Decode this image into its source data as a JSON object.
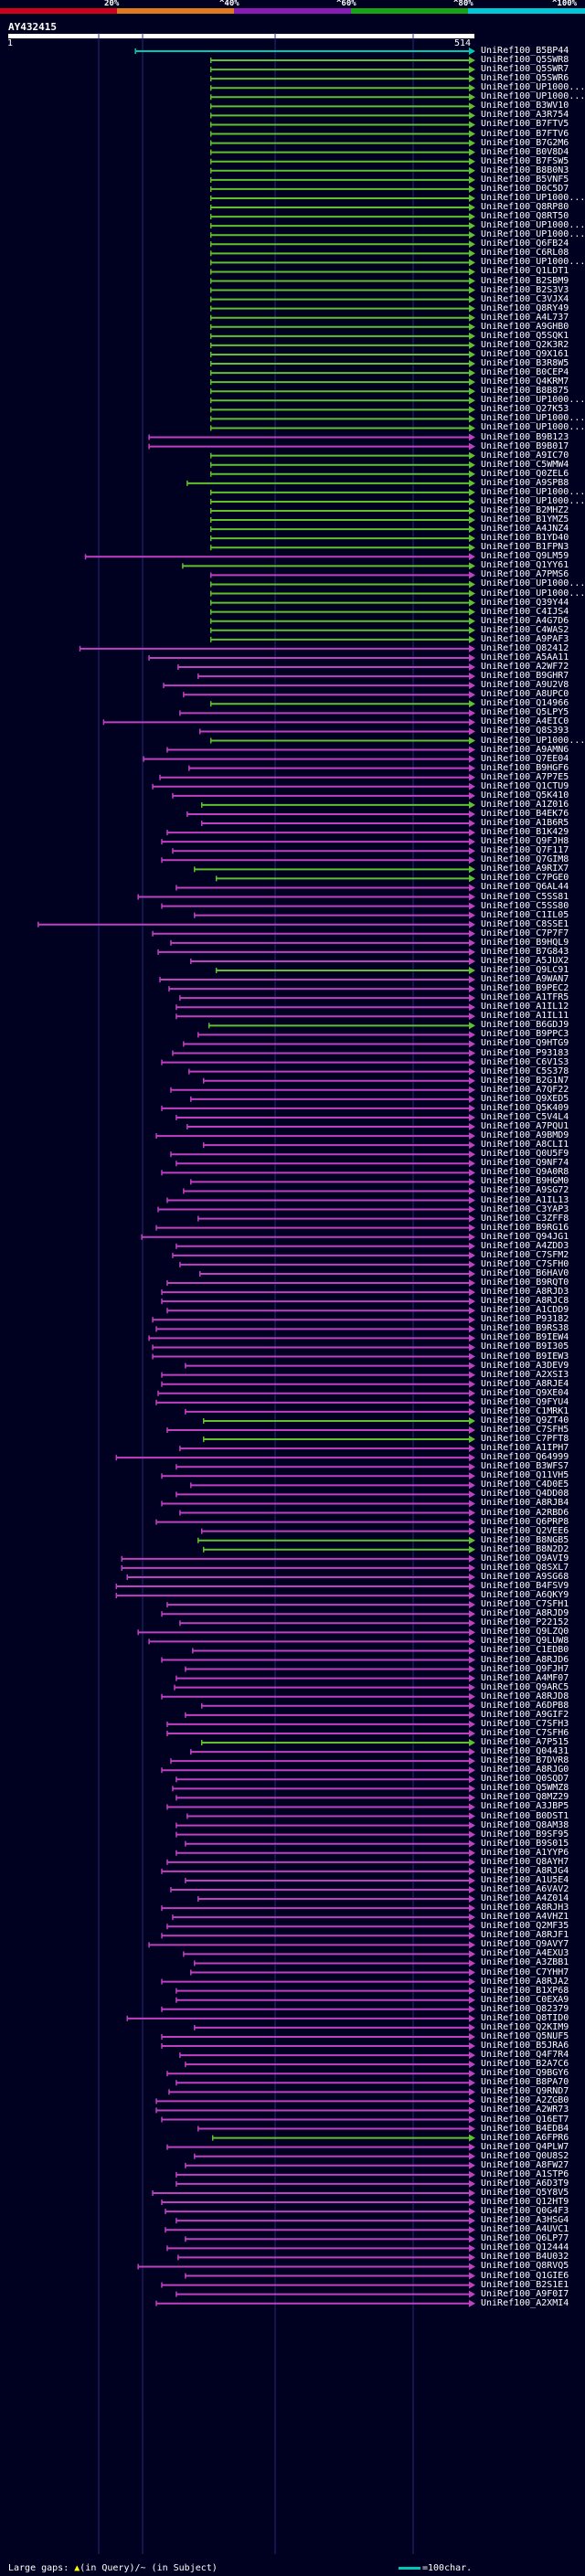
{
  "scale_bar": {
    "ticks": [
      "20%",
      "^40%",
      "^60%",
      "^80%",
      "^100%"
    ],
    "colors": [
      "#d0021b",
      "#e07a1a",
      "#8c1ab8",
      "#18a418",
      "#00c8d8"
    ]
  },
  "query": {
    "title": "AY432415",
    "length": 514,
    "start_label": "1",
    "end_label": "514"
  },
  "grid_positions": [
    108,
    156,
    301,
    452
  ],
  "hits": [
    [
      "UniRef100_B5BP44",
      141,
      514,
      "#00c8b4"
    ],
    [
      "UniRef100_Q5SWR8",
      224,
      514,
      "#60c030"
    ],
    [
      "UniRef100_Q5SWR7",
      224,
      514,
      "#60c030"
    ],
    [
      "UniRef100_Q5SWR6",
      224,
      514,
      "#60c030"
    ],
    [
      "UniRef100_UP1000...",
      224,
      514,
      "#60c030"
    ],
    [
      "UniRef100_UP1000...",
      224,
      514,
      "#60c030"
    ],
    [
      "UniRef100_B3WV10",
      224,
      514,
      "#60c030"
    ],
    [
      "UniRef100_A3R754",
      224,
      514,
      "#60c030"
    ],
    [
      "UniRef100_B7FTV5",
      224,
      514,
      "#60c030"
    ],
    [
      "UniRef100_B7FTV6",
      224,
      514,
      "#60c030"
    ],
    [
      "UniRef100_B7G2M6",
      224,
      514,
      "#60c030"
    ],
    [
      "UniRef100_B0V8D4",
      224,
      514,
      "#60c030"
    ],
    [
      "UniRef100_B7FSW5",
      224,
      514,
      "#60c030"
    ],
    [
      "UniRef100_B8B0N3",
      224,
      514,
      "#60c030"
    ],
    [
      "UniRef100_B5VNF5",
      224,
      514,
      "#60c030"
    ],
    [
      "UniRef100_D0C5D7",
      224,
      514,
      "#60c030"
    ],
    [
      "UniRef100_UP1000...",
      224,
      514,
      "#60c030"
    ],
    [
      "UniRef100_Q8RP80",
      224,
      514,
      "#60c030"
    ],
    [
      "UniRef100_Q8RT50",
      224,
      514,
      "#60c030"
    ],
    [
      "UniRef100_UP1000...",
      224,
      514,
      "#60c030"
    ],
    [
      "UniRef100_UP1000...",
      224,
      514,
      "#60c030"
    ],
    [
      "UniRef100_Q6FB24",
      224,
      514,
      "#60c030"
    ],
    [
      "UniRef100_C6RL08",
      224,
      514,
      "#60c030"
    ],
    [
      "UniRef100_UP1000...",
      224,
      514,
      "#60c030"
    ],
    [
      "UniRef100_Q1LDT1",
      224,
      514,
      "#60c030"
    ],
    [
      "UniRef100_B2SBM9",
      224,
      514,
      "#60c030"
    ],
    [
      "UniRef100_B2S3V3",
      224,
      514,
      "#60c030"
    ],
    [
      "UniRef100_C3VJX4",
      224,
      514,
      "#60c030"
    ],
    [
      "UniRef100_Q8RY49",
      224,
      514,
      "#60c030"
    ],
    [
      "UniRef100_A4L737",
      224,
      514,
      "#60c030"
    ],
    [
      "UniRef100_A9GHB0",
      224,
      514,
      "#60c030"
    ],
    [
      "UniRef100_Q5SQK1",
      224,
      514,
      "#60c030"
    ],
    [
      "UniRef100_Q2K3R2",
      224,
      514,
      "#60c030"
    ],
    [
      "UniRef100_Q9X161",
      224,
      514,
      "#60c030"
    ],
    [
      "UniRef100_B3R8W5",
      224,
      514,
      "#60c030"
    ],
    [
      "UniRef100_B0CEP4",
      224,
      514,
      "#60c030"
    ],
    [
      "UniRef100_Q4KRM7",
      224,
      514,
      "#60c030"
    ],
    [
      "UniRef100_B8B875",
      224,
      514,
      "#60c030"
    ],
    [
      "UniRef100_UP1000...",
      224,
      514,
      "#60c030"
    ],
    [
      "UniRef100_Q27K53",
      224,
      514,
      "#60c030"
    ],
    [
      "UniRef100_UP1000...",
      224,
      514,
      "#60c030"
    ],
    [
      "UniRef100_UP1000...",
      224,
      514,
      "#60c030"
    ],
    [
      "UniRef100_B9B123",
      156,
      514,
      "#c040c0"
    ],
    [
      "UniRef100_B9B017",
      156,
      514,
      "#c040c0"
    ],
    [
      "UniRef100_A9IC70",
      224,
      514,
      "#60c030"
    ],
    [
      "UniRef100_C5WMW4",
      224,
      514,
      "#60c030"
    ],
    [
      "UniRef100_Q0ZEL6",
      224,
      514,
      "#60c030"
    ],
    [
      "UniRef100_A9SPB8",
      198,
      514,
      "#60c030"
    ],
    [
      "UniRef100_UP1000...",
      224,
      514,
      "#60c030"
    ],
    [
      "UniRef100_UP1000...",
      224,
      514,
      "#60c030"
    ],
    [
      "UniRef100_B2MHZ2",
      224,
      514,
      "#60c030"
    ],
    [
      "UniRef100_B1YMZ5",
      224,
      514,
      "#60c030"
    ],
    [
      "UniRef100_A4JNZ4",
      224,
      514,
      "#60c030"
    ],
    [
      "UniRef100_B1YD40",
      224,
      514,
      "#60c030"
    ],
    [
      "UniRef100_B1FPN3",
      224,
      514,
      "#60c030"
    ],
    [
      "UniRef100_Q9LM59",
      86,
      514,
      "#c040c0"
    ],
    [
      "UniRef100_Q1YY61",
      193,
      514,
      "#60c030"
    ],
    [
      "UniRef100_A7PMS6",
      224,
      514,
      "#c040c0"
    ],
    [
      "UniRef100_UP1000...",
      224,
      514,
      "#60c030"
    ],
    [
      "UniRef100_UP1000...",
      224,
      514,
      "#60c030"
    ],
    [
      "UniRef100_Q39Y44",
      224,
      514,
      "#60c030"
    ],
    [
      "UniRef100_C4IJS4",
      224,
      514,
      "#60c030"
    ],
    [
      "UniRef100_A4G7D6",
      224,
      514,
      "#60c030"
    ],
    [
      "UniRef100_C4WAS2",
      224,
      514,
      "#60c030"
    ],
    [
      "UniRef100_A9PAF3",
      224,
      514,
      "#60c030"
    ],
    [
      "UniRef100_Q82412",
      80,
      514,
      "#c040c0"
    ],
    [
      "UniRef100_A5AA11",
      156,
      514,
      "#c040c0"
    ],
    [
      "UniRef100_A2WF72",
      188,
      514,
      "#c040c0"
    ],
    [
      "UniRef100_B9GHR7",
      210,
      514,
      "#c040c0"
    ],
    [
      "UniRef100_A9U2V8",
      172,
      514,
      "#c040c0"
    ],
    [
      "UniRef100_A8UPC0",
      194,
      514,
      "#c040c0"
    ],
    [
      "UniRef100_Q14966",
      224,
      514,
      "#60c030"
    ],
    [
      "UniRef100_Q5LPY5",
      190,
      514,
      "#c040c0"
    ],
    [
      "UniRef100_A4EIC0",
      106,
      514,
      "#c040c0"
    ],
    [
      "UniRef100_Q8S393",
      212,
      514,
      "#c040c0"
    ],
    [
      "UniRef100_UP1000...",
      224,
      514,
      "#60c030"
    ],
    [
      "UniRef100_A9AMN6",
      176,
      514,
      "#c040c0"
    ],
    [
      "UniRef100_Q7EE04",
      150,
      514,
      "#c040c0"
    ],
    [
      "UniRef100_B9HGF6",
      200,
      514,
      "#c040c0"
    ],
    [
      "UniRef100_A7P7E5",
      168,
      514,
      "#c040c0"
    ],
    [
      "UniRef100_Q1CTU9",
      160,
      514,
      "#c040c0"
    ],
    [
      "UniRef100_Q5K410",
      182,
      514,
      "#c040c0"
    ],
    [
      "UniRef100_A1Z016",
      214,
      514,
      "#60c030"
    ],
    [
      "UniRef100_B4EK76",
      198,
      514,
      "#c040c0"
    ],
    [
      "UniRef100_A1B6R5",
      214,
      514,
      "#c040c0"
    ],
    [
      "UniRef100_B1K429",
      176,
      514,
      "#c040c0"
    ],
    [
      "UniRef100_Q9FJH8",
      170,
      514,
      "#c040c0"
    ],
    [
      "UniRef100_Q7F117",
      182,
      514,
      "#c040c0"
    ],
    [
      "UniRef100_Q7GIM8",
      170,
      514,
      "#c040c0"
    ],
    [
      "UniRef100_A9RIX7",
      206,
      514,
      "#60c030"
    ],
    [
      "UniRef100_C7PGE0",
      230,
      514,
      "#60c030"
    ],
    [
      "UniRef100_Q6AL44",
      186,
      514,
      "#c040c0"
    ],
    [
      "UniRef100_C5SS81",
      144,
      514,
      "#c040c0"
    ],
    [
      "UniRef100_C5SS80",
      170,
      514,
      "#c040c0"
    ],
    [
      "UniRef100_C1IL05",
      206,
      514,
      "#c040c0"
    ],
    [
      "UniRef100_C8SSE1",
      34,
      514,
      "#c040c0"
    ],
    [
      "UniRef100_C7P7F7",
      160,
      514,
      "#c040c0"
    ],
    [
      "UniRef100_B9HQL9",
      180,
      514,
      "#c040c0"
    ],
    [
      "UniRef100_B7G843",
      166,
      514,
      "#c040c0"
    ],
    [
      "UniRef100_A5JUX2",
      202,
      514,
      "#c040c0"
    ],
    [
      "UniRef100_Q9LC91",
      230,
      514,
      "#60c030"
    ],
    [
      "UniRef100_A9WAN7",
      168,
      514,
      "#c040c0"
    ],
    [
      "UniRef100_B9PEC2",
      178,
      514,
      "#c040c0"
    ],
    [
      "UniRef100_A1TFR5",
      190,
      514,
      "#c040c0"
    ],
    [
      "UniRef100_A1IL12",
      186,
      514,
      "#c040c0"
    ],
    [
      "UniRef100_A1IL11",
      186,
      514,
      "#c040c0"
    ],
    [
      "UniRef100_B6GDJ9",
      222,
      514,
      "#60c030"
    ],
    [
      "UniRef100_B9PPC3",
      210,
      514,
      "#c040c0"
    ],
    [
      "UniRef100_Q9HTG9",
      194,
      514,
      "#c040c0"
    ],
    [
      "UniRef100_P93183",
      182,
      514,
      "#c040c0"
    ],
    [
      "UniRef100_C6V1S3",
      170,
      514,
      "#c040c0"
    ],
    [
      "UniRef100_C5S378",
      200,
      514,
      "#c040c0"
    ],
    [
      "UniRef100_B2G1N7",
      216,
      514,
      "#c040c0"
    ],
    [
      "UniRef100_A7QF22",
      180,
      514,
      "#c040c0"
    ],
    [
      "UniRef100_Q9XED5",
      202,
      514,
      "#c040c0"
    ],
    [
      "UniRef100_Q5K409",
      170,
      514,
      "#c040c0"
    ],
    [
      "UniRef100_C5V4L4",
      186,
      514,
      "#c040c0"
    ],
    [
      "UniRef100_A7PQU1",
      198,
      514,
      "#c040c0"
    ],
    [
      "UniRef100_A9BMD9",
      164,
      514,
      "#c040c0"
    ],
    [
      "UniRef100_A8CLI1",
      216,
      514,
      "#c040c0"
    ],
    [
      "UniRef100_Q0U5F9",
      180,
      514,
      "#c040c0"
    ],
    [
      "UniRef100_Q9NF74",
      186,
      514,
      "#c040c0"
    ],
    [
      "UniRef100_Q9A0R8",
      170,
      514,
      "#c040c0"
    ],
    [
      "UniRef100_B9HGM0",
      202,
      514,
      "#c040c0"
    ],
    [
      "UniRef100_A9SG72",
      194,
      514,
      "#c040c0"
    ],
    [
      "UniRef100_A1IL13",
      176,
      514,
      "#c040c0"
    ],
    [
      "UniRef100_C3YAP3",
      166,
      514,
      "#c040c0"
    ],
    [
      "UniRef100_C3ZFF8",
      210,
      514,
      "#c040c0"
    ],
    [
      "UniRef100_B9RG16",
      164,
      514,
      "#c040c0"
    ],
    [
      "UniRef100_Q94JG1",
      148,
      514,
      "#c040c0"
    ],
    [
      "UniRef100_A4ZDD3",
      186,
      514,
      "#c040c0"
    ],
    [
      "UniRef100_C7SFM2",
      182,
      514,
      "#c040c0"
    ],
    [
      "UniRef100_C7SFH0",
      190,
      514,
      "#c040c0"
    ],
    [
      "UniRef100_B6HAV0",
      212,
      514,
      "#c040c0"
    ],
    [
      "UniRef100_B9RQT0",
      176,
      514,
      "#c040c0"
    ],
    [
      "UniRef100_A8RJD3",
      170,
      514,
      "#c040c0"
    ],
    [
      "UniRef100_A8RJC8",
      170,
      514,
      "#c040c0"
    ],
    [
      "UniRef100_A1CDD9",
      176,
      514,
      "#c040c0"
    ],
    [
      "UniRef100_P93182",
      160,
      514,
      "#c040c0"
    ],
    [
      "UniRef100_B9RS38",
      164,
      514,
      "#c040c0"
    ],
    [
      "UniRef100_B9IEW4",
      156,
      514,
      "#c040c0"
    ],
    [
      "UniRef100_B9I305",
      160,
      514,
      "#c040c0"
    ],
    [
      "UniRef100_B9IEW3",
      160,
      514,
      "#c040c0"
    ],
    [
      "UniRef100_A3DEV9",
      196,
      514,
      "#c040c0"
    ],
    [
      "UniRef100_A2XSI3",
      170,
      514,
      "#c040c0"
    ],
    [
      "UniRef100_A8RJE4",
      170,
      514,
      "#c040c0"
    ],
    [
      "UniRef100_Q9XE04",
      166,
      514,
      "#c040c0"
    ],
    [
      "UniRef100_Q9FYU4",
      164,
      514,
      "#c040c0"
    ],
    [
      "UniRef100_C1MRK1",
      196,
      514,
      "#c040c0"
    ],
    [
      "UniRef100_Q9ZT40",
      216,
      514,
      "#60c030"
    ],
    [
      "UniRef100_C7SFH5",
      176,
      514,
      "#c040c0"
    ],
    [
      "UniRef100_C7PFT8",
      216,
      514,
      "#60c030"
    ],
    [
      "UniRef100_A1IPH7",
      190,
      514,
      "#c040c0"
    ],
    [
      "UniRef100_Q64999",
      120,
      514,
      "#c040c0"
    ],
    [
      "UniRef100_B3WFS7",
      186,
      514,
      "#c040c0"
    ],
    [
      "UniRef100_Q11VH5",
      170,
      514,
      "#c040c0"
    ],
    [
      "UniRef100_C4D0E5",
      202,
      514,
      "#c040c0"
    ],
    [
      "UniRef100_Q4DD08",
      186,
      514,
      "#c040c0"
    ],
    [
      "UniRef100_A8RJB4",
      170,
      514,
      "#c040c0"
    ],
    [
      "UniRef100_A2RBD6",
      190,
      514,
      "#c040c0"
    ],
    [
      "UniRef100_Q6PRP8",
      164,
      514,
      "#c040c0"
    ],
    [
      "UniRef100_Q2VEE6",
      214,
      514,
      "#c040c0"
    ],
    [
      "UniRef100_B8NGB5",
      210,
      514,
      "#60c030"
    ],
    [
      "UniRef100_B8N2D2",
      216,
      514,
      "#60c030"
    ],
    [
      "UniRef100_Q9AVI9",
      126,
      514,
      "#c040c0"
    ],
    [
      "UniRef100_Q8SXL7",
      126,
      514,
      "#c040c0"
    ],
    [
      "UniRef100_A9SG68",
      132,
      514,
      "#c040c0"
    ],
    [
      "UniRef100_B4FSV9",
      120,
      514,
      "#c040c0"
    ],
    [
      "UniRef100_A6QKY9",
      120,
      514,
      "#c040c0"
    ],
    [
      "UniRef100_C7SFH1",
      176,
      514,
      "#c040c0"
    ],
    [
      "UniRef100_A8RJD9",
      170,
      514,
      "#c040c0"
    ],
    [
      "UniRef100_P22152",
      190,
      514,
      "#c040c0"
    ],
    [
      "UniRef100_Q9LZQ0",
      144,
      514,
      "#c040c0"
    ],
    [
      "UniRef100_Q9LUW8",
      156,
      514,
      "#c040c0"
    ],
    [
      "UniRef100_C1EDB0",
      204,
      514,
      "#c040c0"
    ],
    [
      "UniRef100_A8RJD6",
      170,
      514,
      "#c040c0"
    ],
    [
      "UniRef100_Q9FJH7",
      196,
      514,
      "#c040c0"
    ],
    [
      "UniRef100_A4MF07",
      186,
      514,
      "#c040c0"
    ],
    [
      "UniRef100_Q9ARC5",
      184,
      514,
      "#c040c0"
    ],
    [
      "UniRef100_A8RJD8",
      170,
      514,
      "#c040c0"
    ],
    [
      "UniRef100_A6DPB8",
      214,
      514,
      "#c040c0"
    ],
    [
      "UniRef100_A9GIF2",
      196,
      514,
      "#c040c0"
    ],
    [
      "UniRef100_C7SFH3",
      176,
      514,
      "#c040c0"
    ],
    [
      "UniRef100_C7SFH6",
      176,
      514,
      "#c040c0"
    ],
    [
      "UniRef100_A7P515",
      214,
      514,
      "#60c030"
    ],
    [
      "UniRef100_Q04431",
      202,
      514,
      "#c040c0"
    ],
    [
      "UniRef100_B7DVR8",
      180,
      514,
      "#c040c0"
    ],
    [
      "UniRef100_A8RJG0",
      170,
      514,
      "#c040c0"
    ],
    [
      "UniRef100_Q0SQD7",
      186,
      514,
      "#c040c0"
    ],
    [
      "UniRef100_Q5WMZ8",
      182,
      514,
      "#c040c0"
    ],
    [
      "UniRef100_Q8MZ29",
      186,
      514,
      "#c040c0"
    ],
    [
      "UniRef100_A3JBP5",
      176,
      514,
      "#c040c0"
    ],
    [
      "UniRef100_B0DST1",
      198,
      514,
      "#c040c0"
    ],
    [
      "UniRef100_Q8AM38",
      186,
      514,
      "#c040c0"
    ],
    [
      "UniRef100_B9SF95",
      186,
      514,
      "#c040c0"
    ],
    [
      "UniRef100_B9S015",
      196,
      514,
      "#c040c0"
    ],
    [
      "UniRef100_A1YYP6",
      186,
      514,
      "#c040c0"
    ],
    [
      "UniRef100_Q8AYH7",
      176,
      514,
      "#c040c0"
    ],
    [
      "UniRef100_A8RJG4",
      170,
      514,
      "#c040c0"
    ],
    [
      "UniRef100_A1U5E4",
      196,
      514,
      "#c040c0"
    ],
    [
      "UniRef100_A6VAV2",
      180,
      514,
      "#c040c0"
    ],
    [
      "UniRef100_A4Z014",
      210,
      514,
      "#c040c0"
    ],
    [
      "UniRef100_A8RJH3",
      170,
      514,
      "#c040c0"
    ],
    [
      "UniRef100_A4VHZ1",
      182,
      514,
      "#c040c0"
    ],
    [
      "UniRef100_Q2MF35",
      176,
      514,
      "#c040c0"
    ],
    [
      "UniRef100_A8RJF1",
      170,
      514,
      "#c040c0"
    ],
    [
      "UniRef100_Q9AVY7",
      156,
      514,
      "#c040c0"
    ],
    [
      "UniRef100_A4EXU3",
      194,
      514,
      "#c040c0"
    ],
    [
      "UniRef100_A3ZBB1",
      206,
      514,
      "#c040c0"
    ],
    [
      "UniRef100_C7YHH7",
      202,
      514,
      "#c040c0"
    ],
    [
      "UniRef100_A8RJA2",
      170,
      514,
      "#c040c0"
    ],
    [
      "UniRef100_B1XP68",
      186,
      514,
      "#c040c0"
    ],
    [
      "UniRef100_C0EXA9",
      186,
      514,
      "#c040c0"
    ],
    [
      "UniRef100_Q82379",
      170,
      514,
      "#c040c0"
    ],
    [
      "UniRef100_Q8TID0",
      132,
      514,
      "#c040c0"
    ],
    [
      "UniRef100_Q2KIM9",
      206,
      514,
      "#c040c0"
    ],
    [
      "UniRef100_Q5NUF5",
      170,
      514,
      "#c040c0"
    ],
    [
      "UniRef100_B5JRA6",
      170,
      514,
      "#c040c0"
    ],
    [
      "UniRef100_Q4F7R4",
      190,
      514,
      "#c040c0"
    ],
    [
      "UniRef100_B2A7C6",
      196,
      514,
      "#c040c0"
    ],
    [
      "UniRef100_Q9BGY6",
      176,
      514,
      "#c040c0"
    ],
    [
      "UniRef100_B8PA70",
      186,
      514,
      "#c040c0"
    ],
    [
      "UniRef100_Q9RND7",
      178,
      514,
      "#c040c0"
    ],
    [
      "UniRef100_A2ZGB0",
      164,
      514,
      "#c040c0"
    ],
    [
      "UniRef100_A2WR73",
      164,
      514,
      "#c040c0"
    ],
    [
      "UniRef100_Q16ET7",
      170,
      514,
      "#c040c0"
    ],
    [
      "UniRef100_B4EDB4",
      210,
      514,
      "#c040c0"
    ],
    [
      "UniRef100_A6FPR6",
      226,
      514,
      "#60c030"
    ],
    [
      "UniRef100_Q4PLW7",
      176,
      514,
      "#c040c0"
    ],
    [
      "UniRef100_Q0U8S2",
      206,
      514,
      "#c040c0"
    ],
    [
      "UniRef100_A8FW27",
      196,
      514,
      "#c040c0"
    ],
    [
      "UniRef100_A1STP6",
      186,
      514,
      "#c040c0"
    ],
    [
      "UniRef100_A6D3T9",
      186,
      514,
      "#c040c0"
    ],
    [
      "UniRef100_Q5Y8V5",
      160,
      514,
      "#c040c0"
    ],
    [
      "UniRef100_Q12HT9",
      170,
      514,
      "#c040c0"
    ],
    [
      "UniRef100_Q0G4F3",
      174,
      514,
      "#c040c0"
    ],
    [
      "UniRef100_A3HSG4",
      186,
      514,
      "#c040c0"
    ],
    [
      "UniRef100_A4UVC1",
      174,
      514,
      "#c040c0"
    ],
    [
      "UniRef100_Q6LP77",
      196,
      514,
      "#c040c0"
    ],
    [
      "UniRef100_Q12444",
      176,
      514,
      "#c040c0"
    ],
    [
      "UniRef100_B4U032",
      188,
      514,
      "#c040c0"
    ],
    [
      "UniRef100_Q8RVQ5",
      144,
      514,
      "#c040c0"
    ],
    [
      "UniRef100_Q1GIE6",
      196,
      514,
      "#c040c0"
    ],
    [
      "UniRef100_B2S1E1",
      170,
      514,
      "#c040c0"
    ],
    [
      "UniRef100_A9F0I7",
      186,
      514,
      "#c040c0"
    ],
    [
      "UniRef100_A2XMI4",
      164,
      514,
      "#c040c0"
    ]
  ],
  "legend": {
    "left_text": "Large gaps: ",
    "left_arrow": "▲",
    "left_query": "(in Query)/",
    "left_subject": "~ (in Subject)",
    "right_text": "=100char."
  }
}
